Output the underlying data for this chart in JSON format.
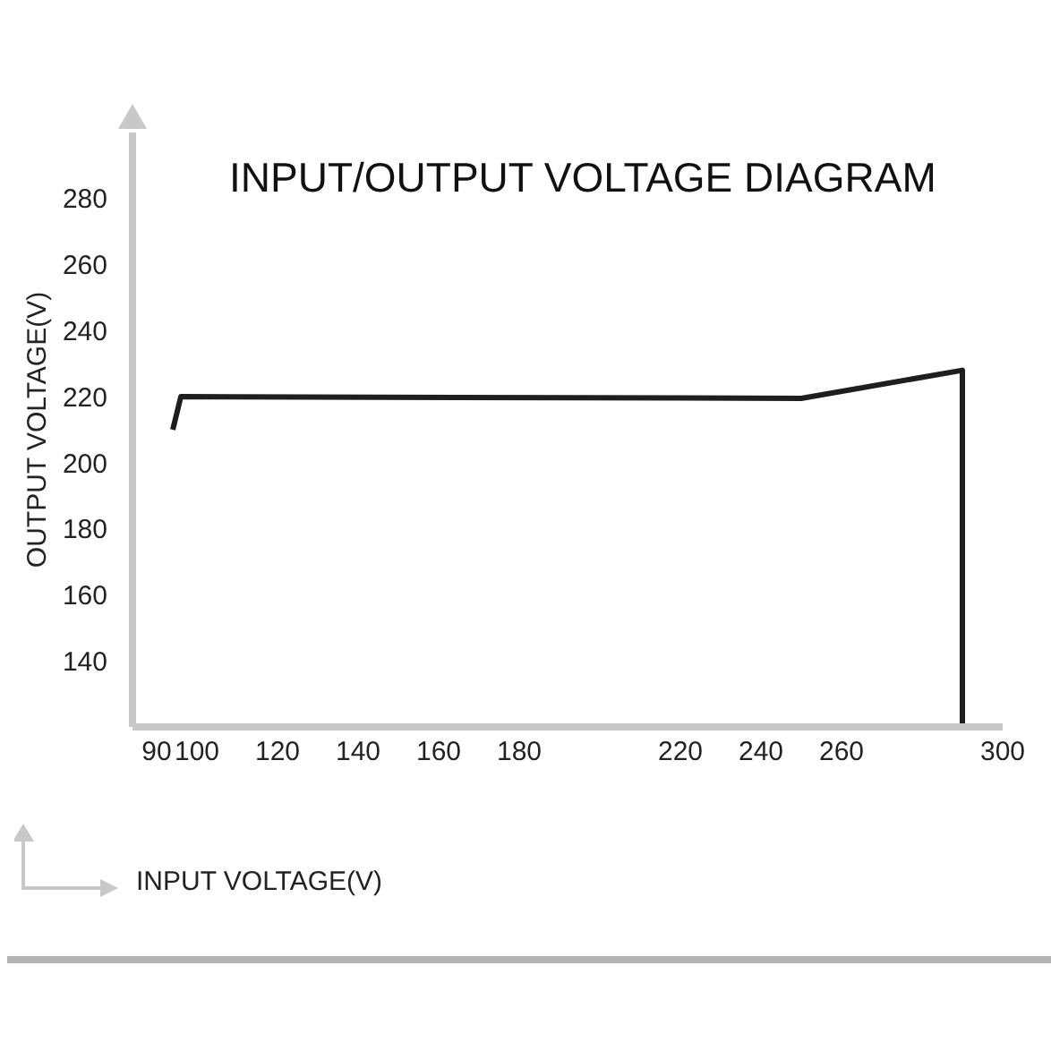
{
  "chart_data": {
    "type": "line",
    "title": "INPUT/OUTPUT VOLTAGE DIAGRAM",
    "xlabel": "INPUT VOLTAGE(V)",
    "ylabel": "OUTPUT VOLTAGE(V)",
    "x": [
      94,
      96,
      250,
      290,
      290
    ],
    "series": [
      {
        "color": "#1e1e1e",
        "values": [
          210,
          220,
          219.5,
          228,
          120
        ]
      }
    ],
    "xlim": [
      84,
      300
    ],
    "xticks": [
      90,
      100,
      120,
      140,
      160,
      180,
      220,
      240,
      260,
      300
    ],
    "ylim": [
      120,
      300
    ],
    "yticks": [
      140,
      160,
      180,
      200,
      220,
      240,
      260,
      280
    ],
    "grid": false,
    "legend": false,
    "marker": "none",
    "line_style": "solid"
  }
}
